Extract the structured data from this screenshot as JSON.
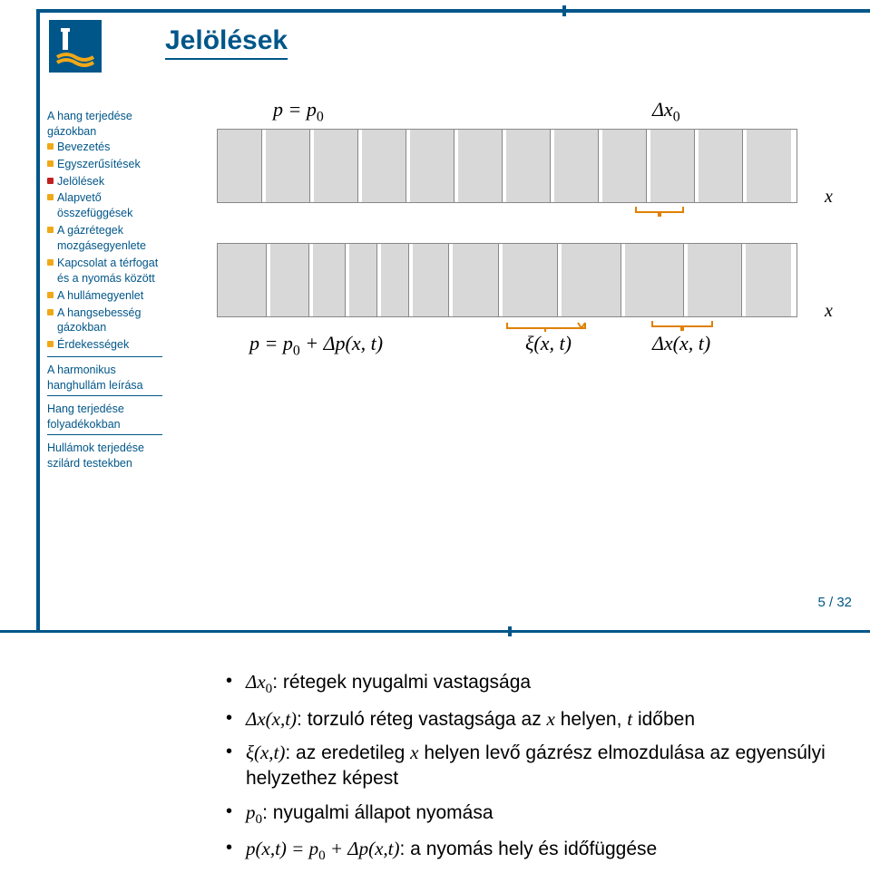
{
  "title": "Jelölések",
  "sidebar": {
    "sec1": {
      "head": "A hang terjedése gázokban",
      "items": [
        "Bevezetés",
        "Egyszerűsítések",
        "Jelölések",
        "Alapvető összefüggések",
        "A gázrétegek mozgásegyenlete",
        "Kapcsolat a térfogat és a nyomás között",
        "A hullámegyenlet",
        "A hangsebesség gázokban",
        "Érdekességek"
      ]
    },
    "sec2": "A harmonikus hanghullám leírása",
    "sec3": "Hang terjedése folyadékokban",
    "sec4": "Hullámok terjedése szilárd testekben"
  },
  "diagram": {
    "row1": {
      "cells": 12,
      "uniform_width": 49
    },
    "row2": {
      "cells": 12,
      "widths": [
        56,
        46,
        39,
        34,
        34,
        42,
        54,
        63,
        68,
        67,
        62,
        52
      ]
    },
    "labels": {
      "top_left": "p = p",
      "top_left_sub": "0",
      "top_right": "Δx",
      "top_right_sub": "0",
      "axis": "x",
      "bottom_left_pre": "p = p",
      "bottom_left_sub": "0",
      "bottom_left_post": " + Δp(x, t)",
      "xi": "ξ(x, t)",
      "dx": "Δx(x, t)"
    },
    "brace_color": "#e08000"
  },
  "bullets": {
    "b1_pre": "Δx",
    "b1_sub": "0",
    "b1_post": ": rétegek nyugalmi vastagsága",
    "b2_pre": "Δx(x,t)",
    "b2_mid": ": torzuló réteg vastagsága az ",
    "b2_x": "x",
    "b2_mid2": " helyen, ",
    "b2_t": "t",
    "b2_end": " időben",
    "b3_pre": "ξ(x,t)",
    "b3_mid": ": az eredetileg ",
    "b3_x": "x",
    "b3_end": " helyen levő gázrész elmozdulása az egyensúlyi helyzethez képest",
    "b4_pre": "p",
    "b4_sub": "0",
    "b4_post": ": nyugalmi állapot nyomása",
    "b5_pre": "p(x,t) = p",
    "b5_sub": "0",
    "b5_mid": " + Δp(x,t)",
    "b5_end": ": a nyomás hely és időfüggése"
  },
  "page": {
    "current": "5",
    "total": "32",
    "sep": " / "
  }
}
